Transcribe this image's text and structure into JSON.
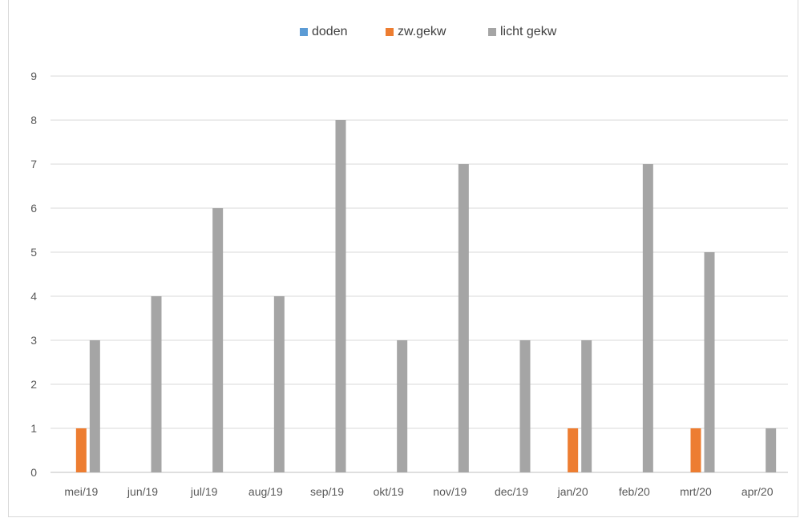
{
  "chart_data": {
    "type": "bar",
    "categories": [
      "mei/19",
      "jun/19",
      "jul/19",
      "aug/19",
      "sep/19",
      "okt/19",
      "nov/19",
      "dec/19",
      "jan/20",
      "feb/20",
      "mrt/20",
      "apr/20"
    ],
    "series": [
      {
        "name": "doden",
        "color": "#5b9bd5",
        "values": [
          0,
          0,
          0,
          0,
          0,
          0,
          0,
          0,
          0,
          0,
          0,
          0
        ]
      },
      {
        "name": "zw.gekw",
        "color": "#ed7d31",
        "values": [
          1,
          0,
          0,
          0,
          0,
          0,
          0,
          0,
          1,
          0,
          1,
          0
        ]
      },
      {
        "name": "licht gekw",
        "color": "#a5a5a5",
        "values": [
          3,
          4,
          6,
          4,
          8,
          3,
          7,
          3,
          3,
          7,
          5,
          1
        ]
      }
    ],
    "yticks": [
      "0",
      "1",
      "2",
      "3",
      "4",
      "5",
      "6",
      "7",
      "8",
      "9"
    ],
    "ylim": [
      0,
      9
    ],
    "grid": true,
    "legend_position": "top"
  }
}
